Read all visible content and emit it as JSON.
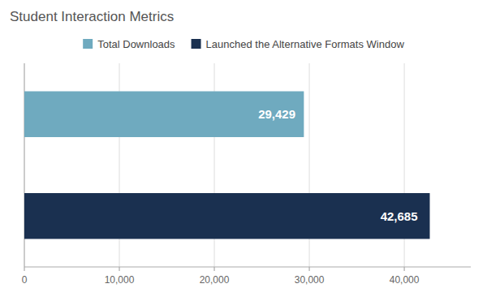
{
  "chart_data": {
    "type": "bar",
    "orientation": "horizontal",
    "title": "Student Interaction Metrics",
    "categories": [
      "Total Downloads",
      "Launched the Alternative Formats Window"
    ],
    "values": [
      29429,
      42685
    ],
    "value_labels": [
      "29,429",
      "42,685"
    ],
    "data_labels": true,
    "colors": [
      "#6faabf",
      "#1a3050"
    ],
    "xlim": [
      0,
      47000
    ],
    "xticks": [
      0,
      {
        "value": 10000,
        "label": "10,000"
      },
      {
        "value": 20000,
        "label": "20,000"
      },
      {
        "value": 30000,
        "label": "30,000"
      },
      {
        "value": 40000,
        "label": "40,000"
      }
    ],
    "grid": true,
    "legend": "top",
    "tick_labels": "x"
  }
}
